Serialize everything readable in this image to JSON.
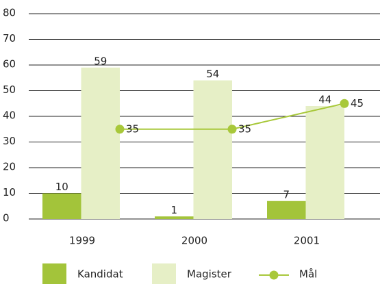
{
  "chart_data": {
    "type": "bar",
    "categories": [
      "1999",
      "2000",
      "2001"
    ],
    "series": [
      {
        "name": "Kandidat",
        "type": "bar",
        "color": "#a3c43a",
        "values": [
          10,
          1,
          7
        ]
      },
      {
        "name": "Magister",
        "type": "bar",
        "color": "#e6efc6",
        "values": [
          59,
          54,
          44
        ]
      },
      {
        "name": "Mål",
        "type": "line",
        "color": "#a8c83a",
        "values": [
          35,
          35,
          45
        ]
      }
    ],
    "ylim": [
      0,
      80
    ],
    "yticks": [
      0,
      10,
      20,
      30,
      40,
      50,
      60,
      70,
      80
    ],
    "grid": true,
    "legend": "bottom"
  }
}
